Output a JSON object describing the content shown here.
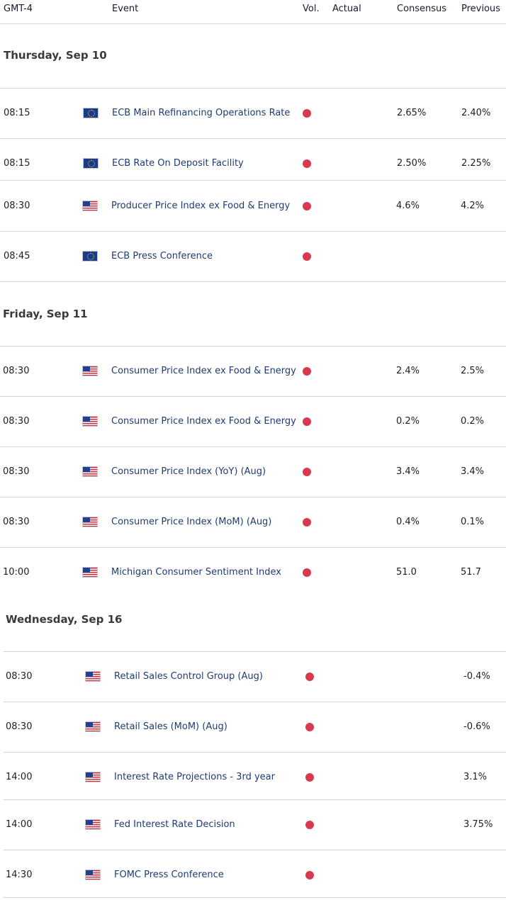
{
  "header": {
    "timezone": "GMT-4",
    "event": "Event",
    "vol": "Vol.",
    "actual": "Actual",
    "consensus": "Consensus",
    "previous": "Previous"
  },
  "colors": {
    "volatility_high": "#d9394e",
    "event_text": "#1f3b73"
  },
  "days": [
    {
      "label": "Thursday, Sep 10",
      "events": [
        {
          "time": "08:15",
          "flag": "eu-flag-icon",
          "event": "ECB Main Refinancing Operations Rate",
          "actual": "",
          "consensus": "2.65%",
          "previous": "2.40%"
        },
        {
          "time": "08:15",
          "flag": "eu-flag-icon",
          "event": "ECB Rate On Deposit Facility",
          "actual": "",
          "consensus": "2.50%",
          "previous": "2.25%"
        },
        {
          "time": "08:30",
          "flag": "us-flag-icon",
          "event": "Producer Price Index ex Food & Energy",
          "actual": "",
          "consensus": "4.6%",
          "previous": "4.2%"
        },
        {
          "time": "08:45",
          "flag": "eu-flag-icon",
          "event": "ECB Press Conference",
          "actual": "",
          "consensus": "",
          "previous": ""
        }
      ]
    },
    {
      "label": "Friday, Sep 11",
      "events": [
        {
          "time": "08:30",
          "flag": "us-flag-icon",
          "event": "Consumer Price Index ex Food & Energy",
          "actual": "",
          "consensus": "2.4%",
          "previous": "2.5%"
        },
        {
          "time": "08:30",
          "flag": "us-flag-icon",
          "event": "Consumer Price Index ex Food & Energy",
          "actual": "",
          "consensus": "0.2%",
          "previous": "0.2%"
        },
        {
          "time": "08:30",
          "flag": "us-flag-icon",
          "event": "Consumer Price Index (YoY) (Aug)",
          "actual": "",
          "consensus": "3.4%",
          "previous": "3.4%"
        },
        {
          "time": "08:30",
          "flag": "us-flag-icon",
          "event": "Consumer Price Index (MoM) (Aug)",
          "actual": "",
          "consensus": "0.4%",
          "previous": "0.1%"
        },
        {
          "time": "10:00",
          "flag": "us-flag-icon",
          "event": "Michigan Consumer Sentiment Index",
          "actual": "",
          "consensus": "51.0",
          "previous": "51.7"
        }
      ]
    },
    {
      "label": "Wednesday, Sep 16",
      "events": [
        {
          "time": "08:30",
          "flag": "us-flag-icon",
          "event": "Retail Sales Control Group (Aug)",
          "actual": "",
          "consensus": "",
          "previous": "-0.4%"
        },
        {
          "time": "08:30",
          "flag": "us-flag-icon",
          "event": "Retail Sales (MoM) (Aug)",
          "actual": "",
          "consensus": "",
          "previous": "-0.6%"
        },
        {
          "time": "14:00",
          "flag": "us-flag-icon",
          "event": "Interest Rate Projections - 3rd year",
          "actual": "",
          "consensus": "",
          "previous": "3.1%"
        },
        {
          "time": "14:00",
          "flag": "us-flag-icon",
          "event": "Fed Interest Rate Decision",
          "actual": "",
          "consensus": "",
          "previous": "3.75%"
        },
        {
          "time": "14:30",
          "flag": "us-flag-icon",
          "event": "FOMC Press Conference",
          "actual": "",
          "consensus": "",
          "previous": ""
        }
      ]
    }
  ]
}
